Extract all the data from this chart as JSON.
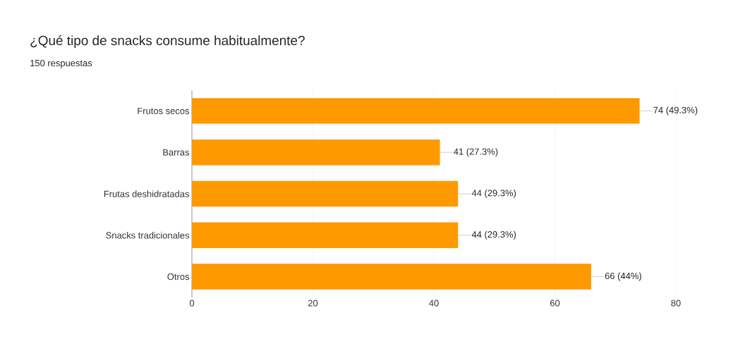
{
  "chart_data": {
    "type": "bar",
    "orientation": "horizontal",
    "title": "¿Qué tipo de snacks consume habitualmente?",
    "subtitle": "150 respuestas",
    "categories": [
      "Frutos secos",
      "Barras",
      "Frutas deshidratadas",
      "Snacks tradicionales",
      "Otros"
    ],
    "values": [
      74,
      41,
      44,
      44,
      66
    ],
    "value_labels": [
      "74 (49.3%)",
      "41 (27.3%)",
      "44 (29.3%)",
      "44 (29.3%)",
      "66 (44%)"
    ],
    "color": "#ff9900",
    "xlim": [
      0,
      80
    ],
    "xticks": [
      0,
      20,
      40,
      60,
      80
    ],
    "grid": "x"
  }
}
